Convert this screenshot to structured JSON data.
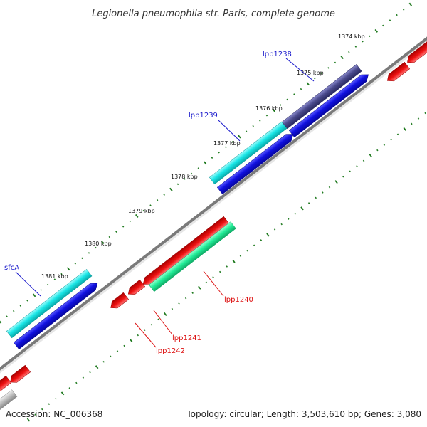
{
  "title": "Legionella pneumophila str. Paris, complete genome",
  "footer": {
    "accession": "Accession: NC_006368",
    "topology": "Topology: circular; Length: 3,503,610 bp; Genes: 3,080"
  },
  "ticks": [
    {
      "label": "1374 kbp"
    },
    {
      "label": "1375 kbp"
    },
    {
      "label": "1376 kbp"
    },
    {
      "label": "1377 kbp"
    },
    {
      "label": "1378 kbp"
    },
    {
      "label": "1379 kbp"
    },
    {
      "label": "1380 kbp"
    },
    {
      "label": "1381 kbp"
    }
  ],
  "gene_labels": [
    {
      "name": "lpp1238",
      "color": "#1a1acc"
    },
    {
      "name": "lpp1239",
      "color": "#1a1acc"
    },
    {
      "name": "sfcA",
      "color": "#1a1acc"
    },
    {
      "name": "lpp1240",
      "color": "#dd1111"
    },
    {
      "name": "lpp1241",
      "color": "#dd1111"
    },
    {
      "name": "lpp1242",
      "color": "#dd1111"
    }
  ],
  "colors": {
    "backbone": "#7a7a7a",
    "tick_mark": "#1f7a1f",
    "cyan_gene": "#19e6e6",
    "blue_cds": "#1010e0",
    "purple_gene": "#4a4a8c",
    "red_cds": "#ee1111",
    "green_gene": "#22ee99",
    "grey_gene": "#bbbbbb"
  }
}
